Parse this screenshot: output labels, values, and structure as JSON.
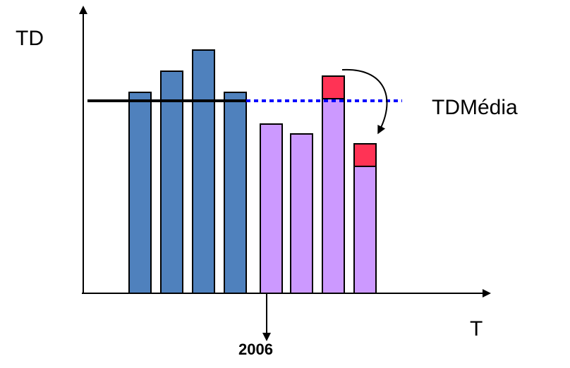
{
  "chart_data": {
    "type": "bar",
    "axes": {
      "y_label": "TD",
      "x_label": "T"
    },
    "bars": [
      {
        "value": 285,
        "group": "before",
        "color": "#4f81bd"
      },
      {
        "value": 315,
        "group": "before",
        "color": "#4f81bd"
      },
      {
        "value": 345,
        "group": "before",
        "color": "#4f81bd"
      },
      {
        "value": 285,
        "group": "before",
        "color": "#4f81bd"
      },
      {
        "value": 240,
        "group": "after",
        "color": "#cc99ff"
      },
      {
        "value": 226,
        "group": "after",
        "color": "#cc99ff"
      },
      {
        "value": 276,
        "group": "after",
        "color": "#cc99ff",
        "excess": 32
      },
      {
        "value": 180,
        "group": "after",
        "color": "#cc99ff",
        "excess": 32
      }
    ],
    "average": {
      "label": "TDMédia",
      "value": 273
    },
    "marker": {
      "label": "2006"
    },
    "colors": {
      "before": "#4f81bd",
      "after": "#cc99ff",
      "excess": "#ff3355",
      "avg_dotted": "#0000ff",
      "avg_solid": "#000000"
    },
    "ylim": [
      0,
      360
    ]
  }
}
